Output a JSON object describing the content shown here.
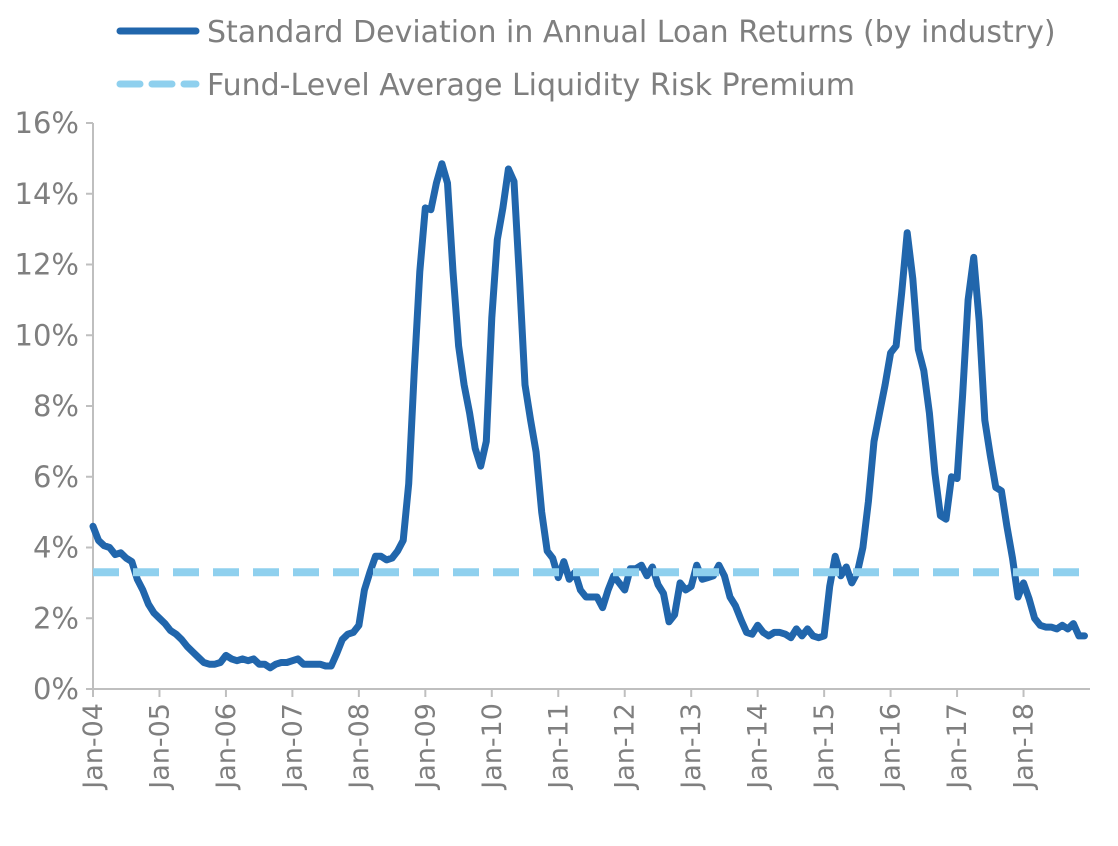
{
  "chart_data": {
    "type": "line",
    "title": "",
    "xlabel": "",
    "ylabel": "",
    "ylim": [
      0,
      16
    ],
    "y_tick_values": [
      0,
      2,
      4,
      6,
      8,
      10,
      12,
      14,
      16
    ],
    "y_tick_labels": [
      "0%",
      "2%",
      "4%",
      "6%",
      "8%",
      "10%",
      "12%",
      "14%",
      "16%"
    ],
    "x_tick_labels": [
      "Jan-04",
      "Jan-05",
      "Jan-06",
      "Jan-07",
      "Jan-08",
      "Jan-09",
      "Jan-10",
      "Jan-11",
      "Jan-12",
      "Jan-13",
      "Jan-14",
      "Jan-15",
      "Jan-16",
      "Jan-17",
      "Jan-18"
    ],
    "x_start": "2004-01",
    "x_end": "2018-12",
    "legend_position": "top",
    "grid": false,
    "series": [
      {
        "name": "Standard Deviation in Annual Loan Returns (by industry)",
        "style": "solid",
        "color": "#2166ac",
        "points": [
          [
            "2004-01",
            4.6
          ],
          [
            "2004-02",
            4.2
          ],
          [
            "2004-03",
            4.05
          ],
          [
            "2004-04",
            4.0
          ],
          [
            "2004-05",
            3.8
          ],
          [
            "2004-06",
            3.85
          ],
          [
            "2004-07",
            3.7
          ],
          [
            "2004-08",
            3.6
          ],
          [
            "2004-09",
            3.1
          ],
          [
            "2004-10",
            2.8
          ],
          [
            "2004-11",
            2.4
          ],
          [
            "2004-12",
            2.15
          ],
          [
            "2005-01",
            2.0
          ],
          [
            "2005-02",
            1.85
          ],
          [
            "2005-03",
            1.65
          ],
          [
            "2005-04",
            1.55
          ],
          [
            "2005-05",
            1.4
          ],
          [
            "2005-06",
            1.2
          ],
          [
            "2005-07",
            1.05
          ],
          [
            "2005-08",
            0.9
          ],
          [
            "2005-09",
            0.75
          ],
          [
            "2005-10",
            0.7
          ],
          [
            "2005-11",
            0.7
          ],
          [
            "2005-12",
            0.75
          ],
          [
            "2006-01",
            0.95
          ],
          [
            "2006-02",
            0.85
          ],
          [
            "2006-03",
            0.8
          ],
          [
            "2006-04",
            0.85
          ],
          [
            "2006-05",
            0.8
          ],
          [
            "2006-06",
            0.85
          ],
          [
            "2006-07",
            0.7
          ],
          [
            "2006-08",
            0.7
          ],
          [
            "2006-09",
            0.6
          ],
          [
            "2006-10",
            0.7
          ],
          [
            "2006-11",
            0.75
          ],
          [
            "2006-12",
            0.75
          ],
          [
            "2007-01",
            0.8
          ],
          [
            "2007-02",
            0.85
          ],
          [
            "2007-03",
            0.7
          ],
          [
            "2007-04",
            0.7
          ],
          [
            "2007-05",
            0.7
          ],
          [
            "2007-06",
            0.7
          ],
          [
            "2007-07",
            0.65
          ],
          [
            "2007-08",
            0.65
          ],
          [
            "2007-09",
            1.0
          ],
          [
            "2007-10",
            1.4
          ],
          [
            "2007-11",
            1.55
          ],
          [
            "2007-12",
            1.6
          ],
          [
            "2008-01",
            1.8
          ],
          [
            "2008-02",
            2.8
          ],
          [
            "2008-03",
            3.3
          ],
          [
            "2008-04",
            3.75
          ],
          [
            "2008-05",
            3.75
          ],
          [
            "2008-06",
            3.65
          ],
          [
            "2008-07",
            3.7
          ],
          [
            "2008-08",
            3.9
          ],
          [
            "2008-09",
            4.2
          ],
          [
            "2008-10",
            5.8
          ],
          [
            "2008-11",
            9.0
          ],
          [
            "2008-12",
            11.8
          ],
          [
            "2009-01",
            13.6
          ],
          [
            "2009-02",
            13.55
          ],
          [
            "2009-03",
            14.3
          ],
          [
            "2009-04",
            14.85
          ],
          [
            "2009-05",
            14.3
          ],
          [
            "2009-06",
            11.8
          ],
          [
            "2009-07",
            9.7
          ],
          [
            "2009-08",
            8.6
          ],
          [
            "2009-09",
            7.8
          ],
          [
            "2009-10",
            6.8
          ],
          [
            "2009-11",
            6.3
          ],
          [
            "2009-12",
            7.0
          ],
          [
            "2010-01",
            10.5
          ],
          [
            "2010-02",
            12.7
          ],
          [
            "2010-03",
            13.6
          ],
          [
            "2010-04",
            14.7
          ],
          [
            "2010-05",
            14.35
          ],
          [
            "2010-06",
            11.6
          ],
          [
            "2010-07",
            8.6
          ],
          [
            "2010-08",
            7.6
          ],
          [
            "2010-09",
            6.7
          ],
          [
            "2010-10",
            5.0
          ],
          [
            "2010-11",
            3.9
          ],
          [
            "2010-12",
            3.7
          ],
          [
            "2011-01",
            3.15
          ],
          [
            "2011-02",
            3.6
          ],
          [
            "2011-03",
            3.1
          ],
          [
            "2011-04",
            3.3
          ],
          [
            "2011-05",
            2.8
          ],
          [
            "2011-06",
            2.6
          ],
          [
            "2011-07",
            2.6
          ],
          [
            "2011-08",
            2.6
          ],
          [
            "2011-09",
            2.3
          ],
          [
            "2011-10",
            2.8
          ],
          [
            "2011-11",
            3.2
          ],
          [
            "2011-12",
            3.0
          ],
          [
            "2012-01",
            2.8
          ],
          [
            "2012-02",
            3.4
          ],
          [
            "2012-03",
            3.4
          ],
          [
            "2012-04",
            3.5
          ],
          [
            "2012-05",
            3.2
          ],
          [
            "2012-06",
            3.45
          ],
          [
            "2012-07",
            2.95
          ],
          [
            "2012-08",
            2.7
          ],
          [
            "2012-09",
            1.9
          ],
          [
            "2012-10",
            2.1
          ],
          [
            "2012-11",
            3.0
          ],
          [
            "2012-12",
            2.8
          ],
          [
            "2013-01",
            2.9
          ],
          [
            "2013-02",
            3.5
          ],
          [
            "2013-03",
            3.1
          ],
          [
            "2013-04",
            3.15
          ],
          [
            "2013-05",
            3.2
          ],
          [
            "2013-06",
            3.5
          ],
          [
            "2013-07",
            3.2
          ],
          [
            "2013-08",
            2.6
          ],
          [
            "2013-09",
            2.35
          ],
          [
            "2013-10",
            1.95
          ],
          [
            "2013-11",
            1.6
          ],
          [
            "2013-12",
            1.55
          ],
          [
            "2014-01",
            1.8
          ],
          [
            "2014-02",
            1.6
          ],
          [
            "2014-03",
            1.5
          ],
          [
            "2014-04",
            1.6
          ],
          [
            "2014-05",
            1.6
          ],
          [
            "2014-06",
            1.55
          ],
          [
            "2014-07",
            1.45
          ],
          [
            "2014-08",
            1.7
          ],
          [
            "2014-09",
            1.5
          ],
          [
            "2014-10",
            1.7
          ],
          [
            "2014-11",
            1.5
          ],
          [
            "2014-12",
            1.45
          ],
          [
            "2015-01",
            1.5
          ],
          [
            "2015-02",
            2.9
          ],
          [
            "2015-03",
            3.75
          ],
          [
            "2015-04",
            3.2
          ],
          [
            "2015-05",
            3.45
          ],
          [
            "2015-06",
            3.0
          ],
          [
            "2015-07",
            3.3
          ],
          [
            "2015-08",
            4.0
          ],
          [
            "2015-09",
            5.3
          ],
          [
            "2015-10",
            7.0
          ],
          [
            "2015-11",
            7.8
          ],
          [
            "2015-12",
            8.6
          ],
          [
            "2016-01",
            9.5
          ],
          [
            "2016-02",
            9.7
          ],
          [
            "2016-03",
            11.2
          ],
          [
            "2016-04",
            12.9
          ],
          [
            "2016-05",
            11.6
          ],
          [
            "2016-06",
            9.6
          ],
          [
            "2016-07",
            9.0
          ],
          [
            "2016-08",
            7.8
          ],
          [
            "2016-09",
            6.1
          ],
          [
            "2016-10",
            4.9
          ],
          [
            "2016-11",
            4.8
          ],
          [
            "2016-12",
            6.0
          ],
          [
            "2017-01",
            5.95
          ],
          [
            "2017-02",
            8.3
          ],
          [
            "2017-03",
            11.0
          ],
          [
            "2017-04",
            12.2
          ],
          [
            "2017-05",
            10.4
          ],
          [
            "2017-06",
            7.6
          ],
          [
            "2017-07",
            6.6
          ],
          [
            "2017-08",
            5.7
          ],
          [
            "2017-09",
            5.6
          ],
          [
            "2017-10",
            4.6
          ],
          [
            "2017-11",
            3.7
          ],
          [
            "2017-12",
            2.6
          ],
          [
            "2018-01",
            3.0
          ],
          [
            "2018-02",
            2.55
          ],
          [
            "2018-03",
            2.0
          ],
          [
            "2018-04",
            1.8
          ],
          [
            "2018-05",
            1.75
          ],
          [
            "2018-06",
            1.75
          ],
          [
            "2018-07",
            1.7
          ],
          [
            "2018-08",
            1.8
          ],
          [
            "2018-09",
            1.7
          ],
          [
            "2018-10",
            1.85
          ],
          [
            "2018-11",
            1.5
          ],
          [
            "2018-12",
            1.5
          ]
        ]
      },
      {
        "name": "Fund-Level Average Liquidity Risk Premium",
        "style": "dashed",
        "color": "#8fd0ee",
        "points": [
          [
            "2004-01",
            3.3
          ],
          [
            "2018-12",
            3.3
          ]
        ]
      }
    ]
  }
}
